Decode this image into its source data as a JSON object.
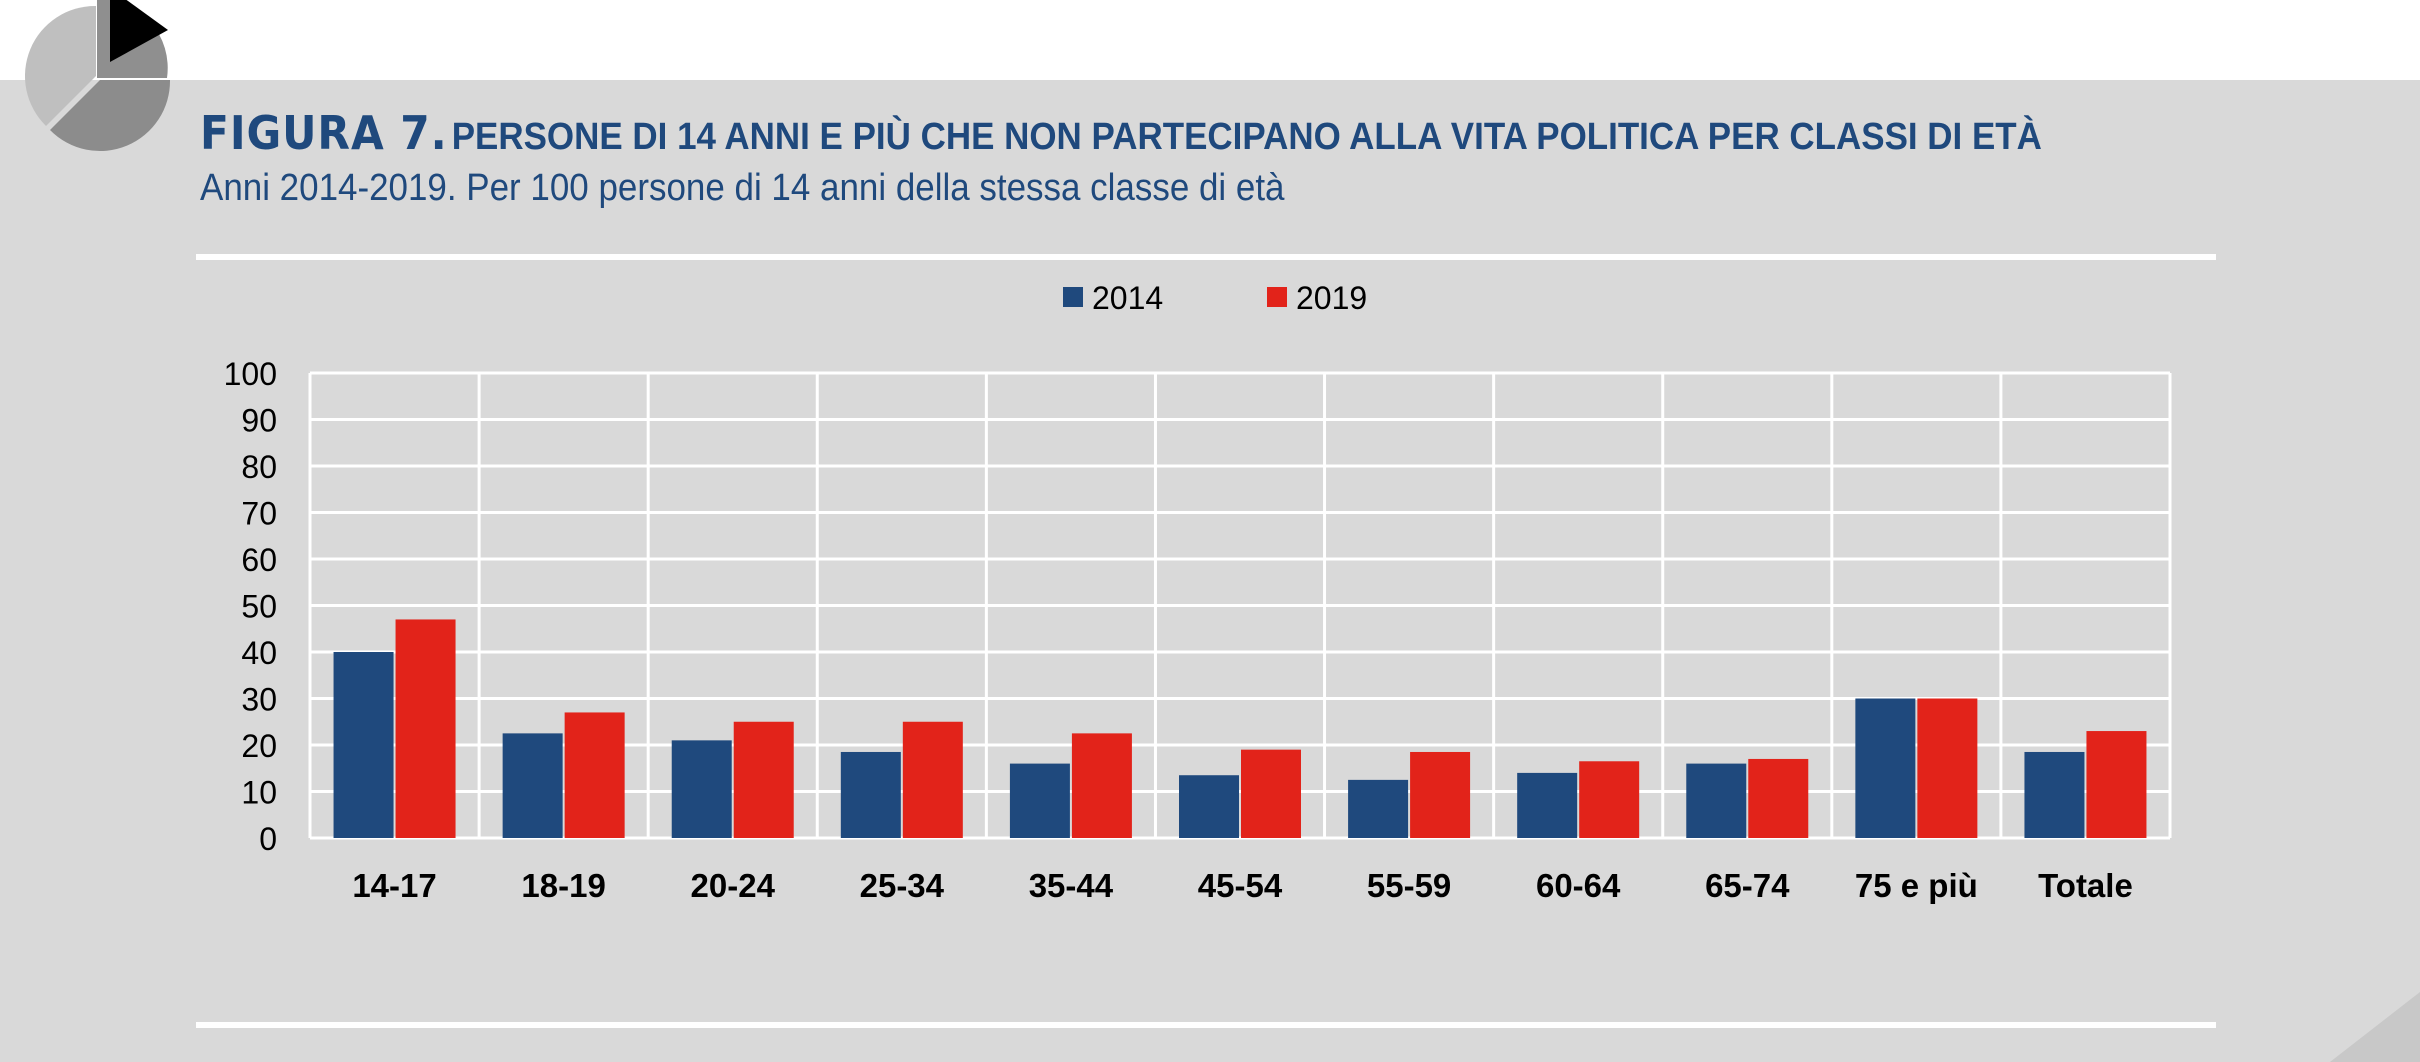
{
  "figure": {
    "label": "FIGURA 7.",
    "title": "PERSONE DI 14 ANNI E PIÙ CHE NON PARTECIPANO ALLA VITA POLITICA PER CLASSI DI ETÀ",
    "subtitle": "Anni 2014-2019. Per 100 persone di 14 anni della stessa classe di età"
  },
  "colors": {
    "title": "#1f497d",
    "panel": "#d9d9d9",
    "grid": "#ffffff"
  },
  "logo": {
    "icon": "pie-chart-logo-icon"
  },
  "chart_data": {
    "type": "bar",
    "title": "",
    "xlabel": "",
    "ylabel": "",
    "categories": [
      "14-17",
      "18-19",
      "20-24",
      "25-34",
      "35-44",
      "45-54",
      "55-59",
      "60-64",
      "65-74",
      "75 e più",
      "Totale"
    ],
    "series": [
      {
        "name": "2014",
        "color": "#1f497d",
        "values": [
          40,
          22.5,
          21,
          18.5,
          16,
          13.5,
          12.5,
          14,
          16,
          30,
          18.5
        ]
      },
      {
        "name": "2019",
        "color": "#e2231a",
        "values": [
          47,
          27,
          25,
          25,
          22.5,
          19,
          18.5,
          16.5,
          17,
          30,
          23
        ]
      }
    ],
    "ylim": [
      0,
      100
    ],
    "yticks": [
      0,
      10,
      20,
      30,
      40,
      50,
      60,
      70,
      80,
      90,
      100
    ],
    "grid": true,
    "legend": "top-center"
  }
}
